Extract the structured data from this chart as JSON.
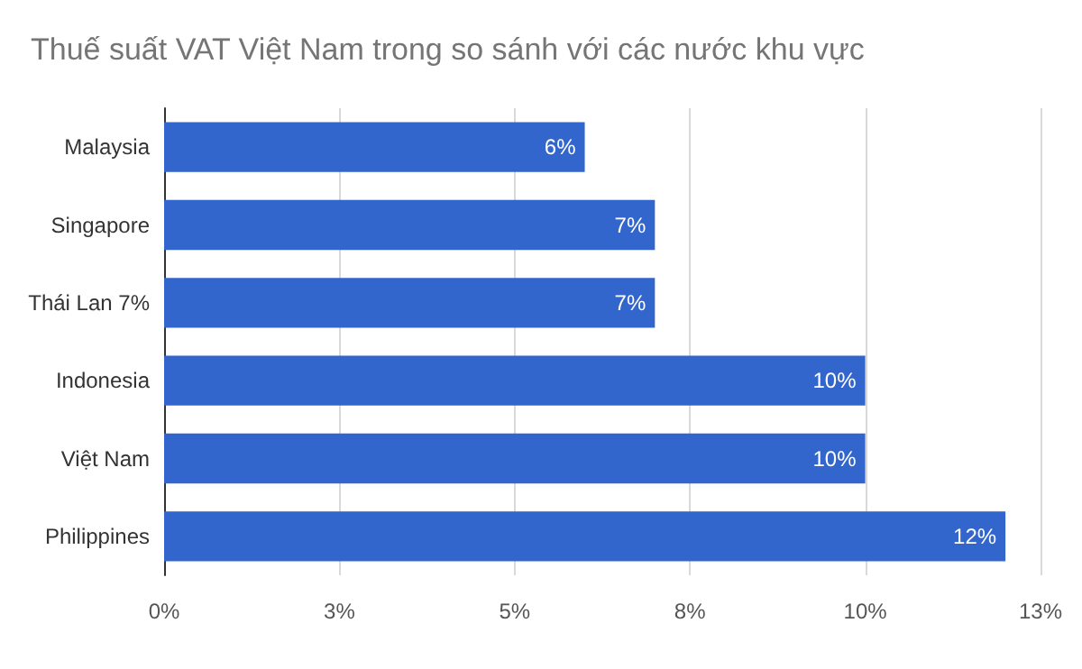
{
  "chart_data": {
    "type": "bar",
    "orientation": "horizontal",
    "title": "Thuế suất VAT Việt Nam trong so sánh với các nước khu vực",
    "categories": [
      "Malaysia",
      "Singapore",
      "Thái Lan 7%",
      "Indonesia",
      "Việt Nam",
      "Philippines"
    ],
    "values": [
      6,
      7,
      7,
      10,
      10,
      12
    ],
    "value_labels": [
      "6%",
      "7%",
      "7%",
      "10%",
      "10%",
      "12%"
    ],
    "color": "#3366cc",
    "xlim": [
      0,
      12.5
    ],
    "xticks": [
      {
        "value": 0,
        "label": "0%"
      },
      {
        "value": 2.5,
        "label": "3%"
      },
      {
        "value": 5,
        "label": "5%"
      },
      {
        "value": 7.5,
        "label": "8%"
      },
      {
        "value": 10,
        "label": "10%"
      },
      {
        "value": 12.5,
        "label": "13%"
      }
    ],
    "grid": "x"
  }
}
